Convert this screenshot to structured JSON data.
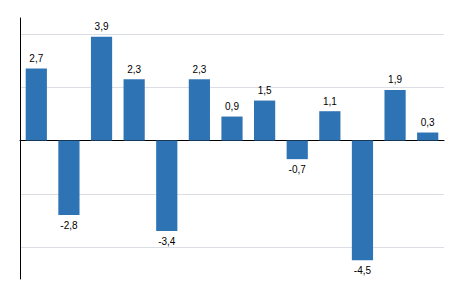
{
  "chart_data": {
    "type": "bar",
    "categories": [
      null,
      null,
      null,
      null,
      null,
      null,
      null,
      null,
      null,
      null,
      null,
      null,
      null
    ],
    "values": [
      2.7,
      -2.8,
      3.9,
      2.3,
      -3.4,
      2.3,
      0.9,
      1.5,
      -0.7,
      1.1,
      -4.5,
      1.9,
      0.3
    ],
    "value_labels": [
      "2,7",
      "-2,8",
      "3,9",
      "2,3",
      "-3,4",
      "2,3",
      "0,9",
      "1,5",
      "-0,7",
      "1,1",
      "-4,5",
      "1,9",
      "0,3"
    ],
    "color": "#2E74B5",
    "ylim": [
      -5.2,
      4.6
    ],
    "yticks": [
      -4,
      -2,
      0,
      2,
      4
    ],
    "grid": true,
    "data_labels": true,
    "tick_labels": false
  }
}
